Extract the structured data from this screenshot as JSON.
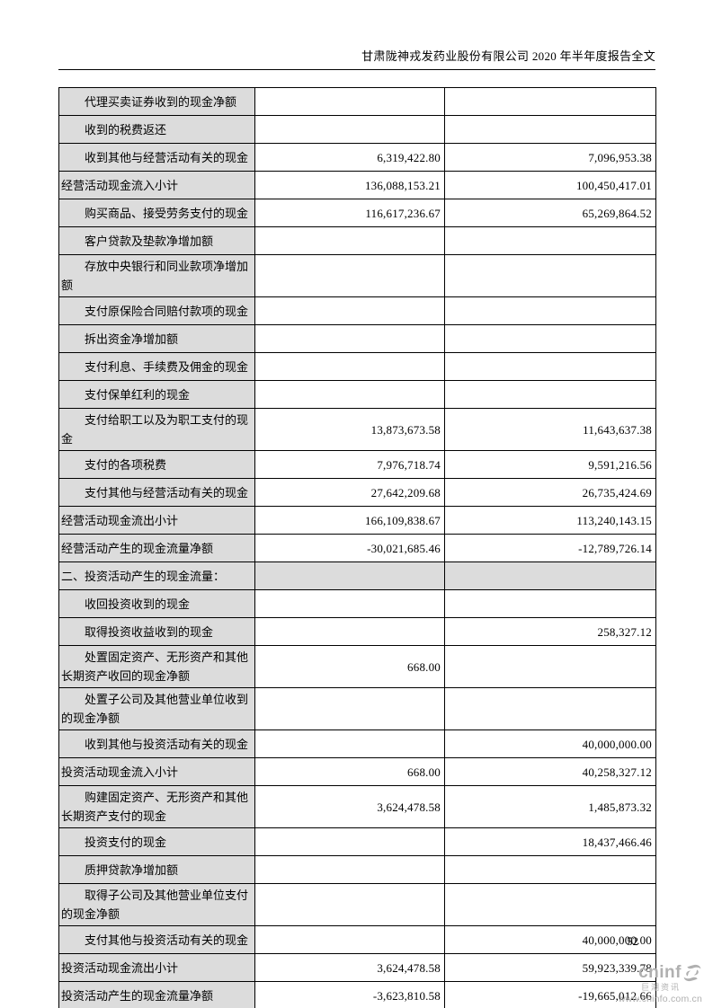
{
  "header": {
    "title": "甘肃陇神戎发药业股份有限公司 2020 年半年度报告全文"
  },
  "page": {
    "number": "52"
  },
  "colors": {
    "label_cell_bg": "#dcdcdc",
    "table_border": "#000000",
    "logo_gray": "#b0b0b0"
  },
  "table": {
    "rows": [
      {
        "label": "代理买卖证券收到的现金净额",
        "current": "",
        "prior": "",
        "type": "item"
      },
      {
        "label": "收到的税费返还",
        "current": "",
        "prior": "",
        "type": "item"
      },
      {
        "label": "收到其他与经营活动有关的现金",
        "current": "6,319,422.80",
        "prior": "7,096,953.38",
        "type": "item"
      },
      {
        "label": "经营活动现金流入小计",
        "current": "136,088,153.21",
        "prior": "100,450,417.01",
        "type": "subtotal"
      },
      {
        "label": "购买商品、接受劳务支付的现金",
        "current": "116,617,236.67",
        "prior": "65,269,864.52",
        "type": "item"
      },
      {
        "label": "客户贷款及垫款净增加额",
        "current": "",
        "prior": "",
        "type": "item"
      },
      {
        "label": "存放中央银行和同业款项净增加额",
        "current": "",
        "prior": "",
        "type": "item"
      },
      {
        "label": "支付原保险合同赔付款项的现金",
        "current": "",
        "prior": "",
        "type": "item"
      },
      {
        "label": "拆出资金净增加额",
        "current": "",
        "prior": "",
        "type": "item"
      },
      {
        "label": "支付利息、手续费及佣金的现金",
        "current": "",
        "prior": "",
        "type": "item"
      },
      {
        "label": "支付保单红利的现金",
        "current": "",
        "prior": "",
        "type": "item"
      },
      {
        "label": "支付给职工以及为职工支付的现金",
        "current": "13,873,673.58",
        "prior": "11,643,637.38",
        "type": "item"
      },
      {
        "label": "支付的各项税费",
        "current": "7,976,718.74",
        "prior": "9,591,216.56",
        "type": "item"
      },
      {
        "label": "支付其他与经营活动有关的现金",
        "current": "27,642,209.68",
        "prior": "26,735,424.69",
        "type": "item"
      },
      {
        "label": "经营活动现金流出小计",
        "current": "166,109,838.67",
        "prior": "113,240,143.15",
        "type": "subtotal"
      },
      {
        "label": "经营活动产生的现金流量净额",
        "current": "-30,021,685.46",
        "prior": "-12,789,726.14",
        "type": "subtotal"
      },
      {
        "label": "二、投资活动产生的现金流量：",
        "current": "",
        "prior": "",
        "type": "section"
      },
      {
        "label": "收回投资收到的现金",
        "current": "",
        "prior": "",
        "type": "item"
      },
      {
        "label": "取得投资收益收到的现金",
        "current": "",
        "prior": "258,327.12",
        "type": "item"
      },
      {
        "label": "处置固定资产、无形资产和其他长期资产收回的现金净额",
        "current": "668.00",
        "prior": "",
        "type": "item"
      },
      {
        "label": "处置子公司及其他营业单位收到的现金净额",
        "current": "",
        "prior": "",
        "type": "item"
      },
      {
        "label": "收到其他与投资活动有关的现金",
        "current": "",
        "prior": "40,000,000.00",
        "type": "item"
      },
      {
        "label": "投资活动现金流入小计",
        "current": "668.00",
        "prior": "40,258,327.12",
        "type": "subtotal"
      },
      {
        "label": "购建固定资产、无形资产和其他长期资产支付的现金",
        "current": "3,624,478.58",
        "prior": "1,485,873.32",
        "type": "item"
      },
      {
        "label": "投资支付的现金",
        "current": "",
        "prior": "18,437,466.46",
        "type": "item"
      },
      {
        "label": "质押贷款净增加额",
        "current": "",
        "prior": "",
        "type": "item"
      },
      {
        "label": "取得子公司及其他营业单位支付的现金净额",
        "current": "",
        "prior": "",
        "type": "item"
      },
      {
        "label": "支付其他与投资活动有关的现金",
        "current": "",
        "prior": "40,000,000.00",
        "type": "item"
      },
      {
        "label": "投资活动现金流出小计",
        "current": "3,624,478.58",
        "prior": "59,923,339.78",
        "type": "subtotal"
      },
      {
        "label": "投资活动产生的现金流量净额",
        "current": "-3,623,810.58",
        "prior": "-19,665,012.66",
        "type": "subtotal"
      }
    ]
  },
  "footer": {
    "logo": {
      "brand": "cninf",
      "name": "巨潮资讯",
      "url": "www.cninfo.com.cn"
    }
  }
}
